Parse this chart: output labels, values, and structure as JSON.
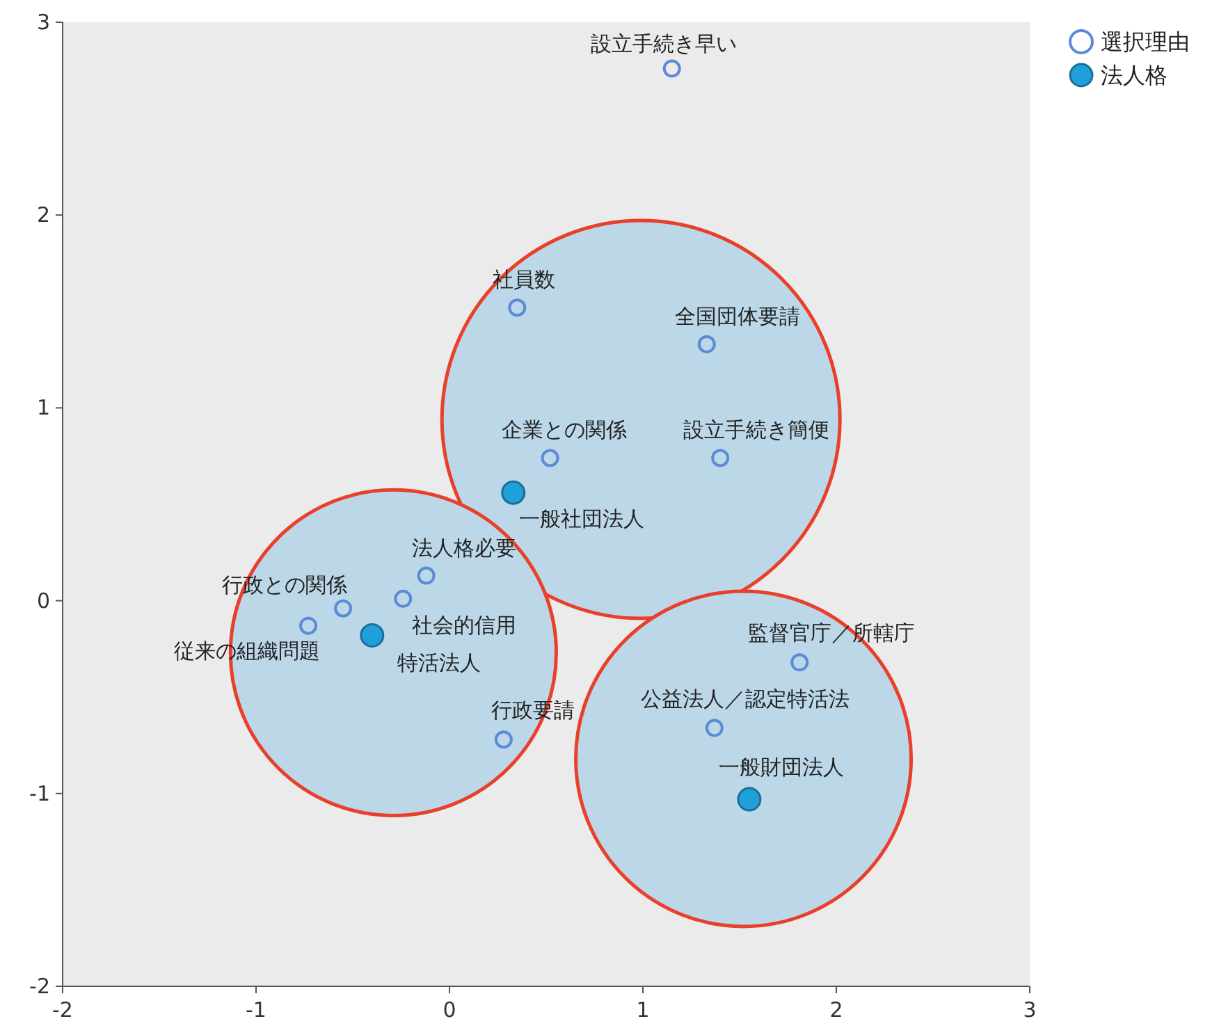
{
  "chart_data": {
    "type": "scatter",
    "marker": "circle",
    "legend": "top right",
    "grid": false,
    "xlim": [
      -2,
      3
    ],
    "ylim": [
      -2,
      3
    ],
    "xticks": [
      -2,
      -1,
      0,
      1,
      2,
      3
    ],
    "yticks": [
      -2,
      -1,
      0,
      1,
      2,
      3
    ],
    "series": [
      {
        "type": "bubble",
        "color": "#bcd8e8",
        "x": [
          0.99,
          -0.29,
          1.52
        ],
        "values": [
          0.94,
          -0.27,
          -0.82
        ],
        "sizes": [
          1,
          0.67,
          0.71
        ]
      },
      {
        "name": "選択理由",
        "color": "#5b8bd6",
        "x": [
          1.15,
          0.35,
          1.33,
          0.52,
          1.4,
          -0.12,
          -0.24,
          -0.55,
          -0.73,
          0.28,
          1.81,
          1.37
        ],
        "values": [
          2.76,
          1.52,
          1.33,
          0.74,
          0.74,
          0.13,
          0.01,
          -0.04,
          -0.13,
          -0.72,
          -0.32,
          -0.66
        ]
      },
      {
        "name": "法人格",
        "color": "#1fa0d8",
        "x": [
          0.33,
          -0.4,
          1.55
        ],
        "values": [
          0.56,
          -0.18,
          -1.03
        ]
      }
    ],
    "annotations": [
      {
        "text": "設立手続き早い",
        "x": 1.15,
        "y": 2.76
      },
      {
        "text": "社員数",
        "x": 0.35,
        "y": 1.52
      },
      {
        "text": "全国団体要請",
        "x": 1.33,
        "y": 1.33
      },
      {
        "text": "企業との関係",
        "x": 0.52,
        "y": 0.74
      },
      {
        "text": "設立手続き簡便",
        "x": 1.4,
        "y": 0.74
      },
      {
        "text": "法人格必要",
        "x": -0.12,
        "y": 0.13
      },
      {
        "text": "社会的信用",
        "x": -0.24,
        "y": 0.01
      },
      {
        "text": "行政との関係",
        "x": -0.55,
        "y": -0.04
      },
      {
        "text": "従来の組織問題",
        "x": -0.73,
        "y": -0.13
      },
      {
        "text": "行政要請",
        "x": 0.28,
        "y": -0.72
      },
      {
        "text": "監督官庁／所轄庁",
        "x": 1.81,
        "y": -0.32
      },
      {
        "text": "公益法人／認定特活法",
        "x": 1.37,
        "y": -0.66
      },
      {
        "text": "一般社団法人",
        "x": 0.33,
        "y": 0.56
      },
      {
        "text": "特活法人",
        "x": -0.4,
        "y": -0.18
      },
      {
        "text": "一般財団法人",
        "x": 1.55,
        "y": -1.03
      }
    ]
  }
}
